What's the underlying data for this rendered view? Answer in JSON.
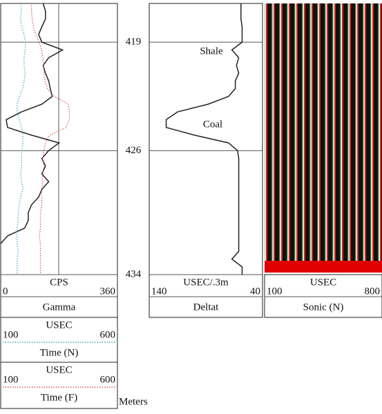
{
  "depth_axis": {
    "label": "Meters",
    "ylim": [
      416.5,
      434
    ],
    "yticks": [
      419,
      426,
      434
    ],
    "depths": [
      416.5,
      417,
      417.5,
      418,
      418.5,
      419,
      419.5,
      420,
      420.5,
      421,
      421.5,
      422,
      422.5,
      423,
      423.5,
      424,
      424.5,
      425,
      425.5,
      426,
      426.5,
      427,
      427.5,
      428,
      428.5,
      429,
      429.5,
      430,
      430.5,
      431,
      431.5,
      432,
      432.5,
      433,
      433.5,
      434
    ]
  },
  "curves": [
    {
      "name": "Gamma",
      "unit": "CPS",
      "xlim": [
        0,
        360
      ],
      "color": "#222222",
      "dashed": false,
      "values": [
        131,
        138,
        138,
        127,
        117,
        127,
        191,
        148,
        131,
        138,
        148,
        153,
        159,
        127,
        64,
        17,
        21,
        95,
        180,
        148,
        127,
        138,
        127,
        148,
        127,
        117,
        95,
        85,
        85,
        74,
        21,
        0,
        null,
        null,
        null,
        null
      ]
    },
    {
      "name": "Time (N)",
      "unit": "USEC",
      "xlim": [
        100,
        600
      ],
      "color": "#3aa9c4",
      "dashed": true,
      "values": [
        188,
        188,
        185,
        190,
        200,
        205,
        205,
        200,
        200,
        205,
        200,
        195,
        180,
        170,
        170,
        180,
        190,
        195,
        195,
        190,
        190,
        190,
        185,
        190,
        195,
        185,
        180,
        175,
        175,
        170,
        170,
        170,
        175,
        170,
        170,
        170
      ]
    },
    {
      "name": "Time (F)",
      "unit": "USEC",
      "xlim": [
        100,
        600
      ],
      "color": "#d9534f",
      "dashed": true,
      "values": [
        232,
        232,
        235,
        240,
        250,
        265,
        276,
        280,
        285,
        285,
        290,
        300,
        330,
        390,
        394,
        394,
        380,
        310,
        291,
        285,
        280,
        285,
        280,
        280,
        276,
        276,
        276,
        270,
        270,
        270,
        265,
        270,
        270,
        270,
        270,
        270
      ]
    },
    {
      "name": "Deltat",
      "unit": "USEC/.3m",
      "xlim": [
        140,
        40
      ],
      "color": "#222222",
      "dashed": false,
      "values": [
        59,
        59,
        59,
        58,
        58,
        58,
        67,
        61,
        63,
        61,
        64,
        64,
        70,
        88,
        115,
        125,
        125,
        100,
        70,
        62,
        61,
        61,
        61,
        61,
        61,
        61,
        61,
        61,
        61,
        61,
        61,
        61,
        61,
        67,
        58,
        58
      ]
    }
  ],
  "sonic": {
    "name": "Sonic (N)",
    "unit": "USEC",
    "xlim": [
      100,
      800
    ]
  },
  "annotations": [
    "Shale",
    "Coal"
  ]
}
